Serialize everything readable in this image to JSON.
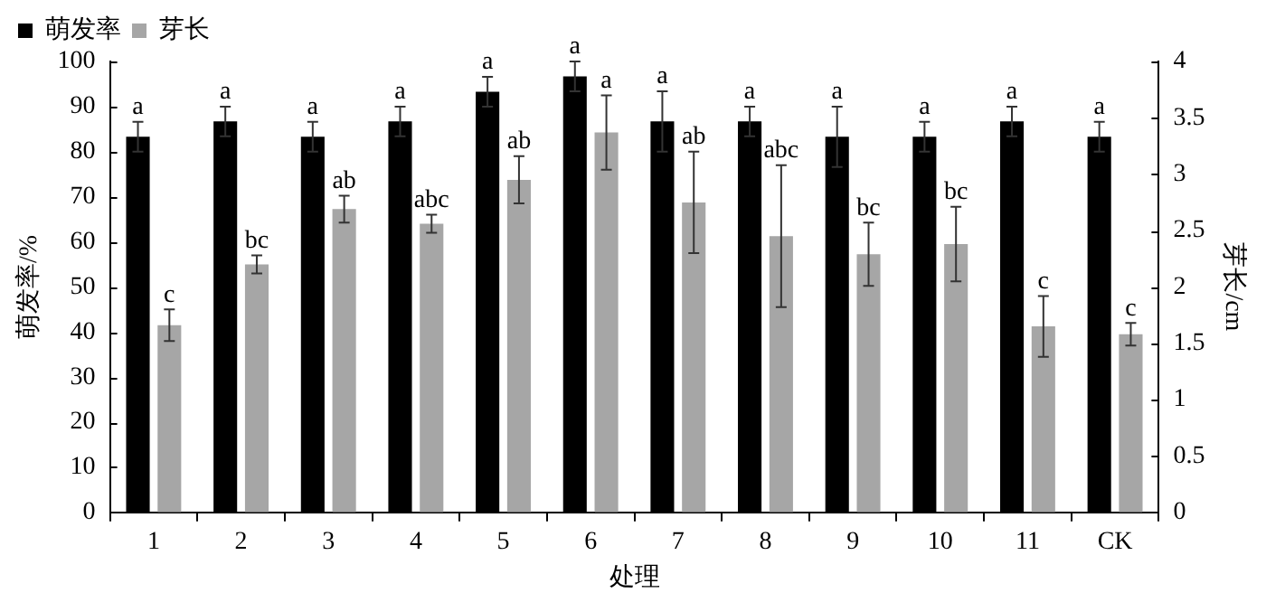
{
  "chart_data": {
    "type": "bar",
    "xlabel": "处理",
    "ylabel": "萌发率/%",
    "y2label": "芽长/cm",
    "categories": [
      "1",
      "2",
      "3",
      "4",
      "5",
      "6",
      "7",
      "8",
      "9",
      "10",
      "11",
      "CK"
    ],
    "ylim": [
      0,
      100
    ],
    "yticks": [
      0,
      10,
      20,
      30,
      40,
      50,
      60,
      70,
      80,
      90,
      100
    ],
    "y2lim": [
      0,
      4
    ],
    "y2ticks": [
      0,
      0.5,
      1,
      1.5,
      2,
      2.5,
      3,
      3.5,
      4
    ],
    "legend": "top left",
    "grid": false,
    "series": [
      {
        "name": "萌发率",
        "color": "#000000",
        "values": [
          83.3,
          86.7,
          83.3,
          86.7,
          93.3,
          96.7,
          86.7,
          86.7,
          83.3,
          83.3,
          86.7,
          83.3
        ],
        "errors": [
          3.3,
          3.3,
          3.3,
          3.3,
          3.3,
          3.3,
          6.7,
          3.3,
          6.7,
          3.3,
          3.3,
          3.3
        ],
        "value_labels": [
          "a",
          "a",
          "a",
          "a",
          "a",
          "a",
          "a",
          "a",
          "a",
          "a",
          "a",
          "a"
        ]
      },
      {
        "name": "芽长",
        "color": "#a6a6a6",
        "axis": "y2",
        "values": [
          1.66,
          2.2,
          2.69,
          2.56,
          2.95,
          3.37,
          2.75,
          2.45,
          2.29,
          2.38,
          1.65,
          1.58
        ],
        "errors": [
          0.14,
          0.08,
          0.12,
          0.08,
          0.21,
          0.33,
          0.45,
          0.63,
          0.28,
          0.33,
          0.27,
          0.1
        ],
        "value_labels": [
          "c",
          "bc",
          "ab",
          "abc",
          "ab",
          "a",
          "ab",
          "abc",
          "bc",
          "bc",
          "c",
          "c"
        ]
      }
    ]
  }
}
